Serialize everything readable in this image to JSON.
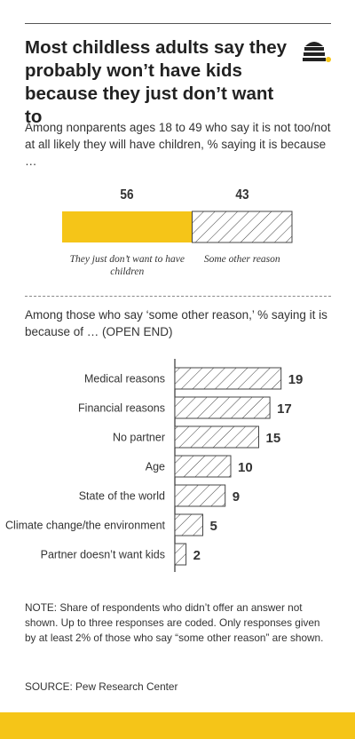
{
  "title": "Most childless adults say they probably won’t have kids because they just don’t want to",
  "subtitle": "Among nonparents ages 18 to 49 who say it is not too/not at all likely they will have children, % saying it is because …",
  "chart_sub": "Among those who say ‘some other reason,’ % saying it is because of … (OPEN END)",
  "note": "NOTE: Share of respondents who didn’t offer an answer not shown. Up to three responses are coded. Only responses given by at least 2% of those who say “some other reason” are shown.",
  "source": "SOURCE: Pew Research Center",
  "colors": {
    "accent": "#F5C518",
    "ink": "#333333"
  },
  "logo_icon": "beehive-logo-icon",
  "chart_data": [
    {
      "type": "bar",
      "stacked": true,
      "categories": [
        "They just don’t want to have children",
        "Some other reason"
      ],
      "values": [
        56,
        43
      ],
      "value_labels": [
        "56",
        "43"
      ],
      "colors": [
        "#F5C518",
        "hatched"
      ]
    },
    {
      "type": "bar",
      "orientation": "horizontal",
      "categories": [
        "Medical reasons",
        "Financial reasons",
        "No partner",
        "Age",
        "State of the world",
        "Climate change/the environment",
        "Partner doesn’t want kids"
      ],
      "values": [
        19,
        17,
        15,
        10,
        9,
        5,
        2
      ],
      "value_labels": [
        "19",
        "17",
        "15",
        "10",
        "9",
        "5",
        "2"
      ],
      "fill": "hatched"
    }
  ]
}
